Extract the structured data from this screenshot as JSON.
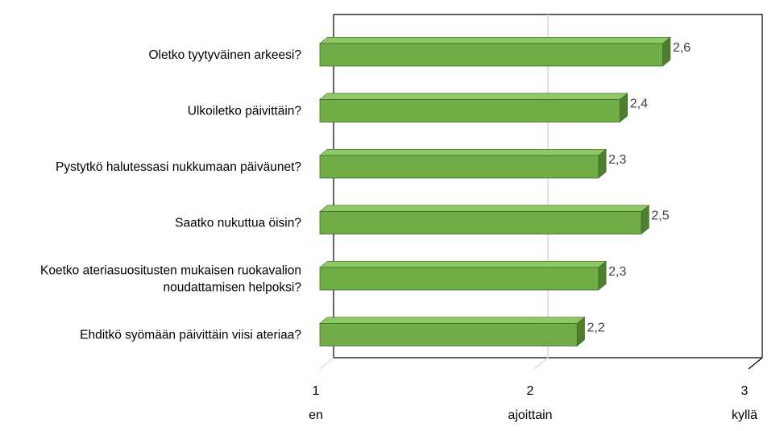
{
  "chart_data": {
    "type": "bar",
    "orientation": "horizontal",
    "style": "3d",
    "title": "",
    "xlabel": "",
    "ylabel": "",
    "categories": [
      "Oletko tyytyväinen arkeesi?",
      "Ulkoiletko päivittäin?",
      "Pystytkö halutessasi nukkumaan päiväunet?",
      "Saatko nukuttua öisin?",
      "Koetko ateriasuositusten mukaisen ruokavalion noudattamisen helpoksi?",
      "Ehditkö syömään päivittäin viisi ateriaa?"
    ],
    "category_lines": [
      [
        "Oletko tyytyväinen arkeesi?"
      ],
      [
        "Ulkoiletko päivittäin?"
      ],
      [
        "Pystytkö halutessasi nukkumaan päiväunet?"
      ],
      [
        "Saatko nukuttua öisin?"
      ],
      [
        "Koetko ateriasuositusten mukaisen ruokavalion",
        "noudattamisen helpoksi?"
      ],
      [
        "Ehditkö syömään päivittäin viisi ateriaa?"
      ]
    ],
    "values": [
      2.6,
      2.4,
      2.3,
      2.5,
      2.3,
      2.2
    ],
    "data_labels": [
      "2,6",
      "2,4",
      "2,3",
      "2,5",
      "2,3",
      "2,2"
    ],
    "xlim": [
      1,
      3
    ],
    "x_ticks": [
      {
        "value": 1,
        "label": "1",
        "sublabel": "en"
      },
      {
        "value": 2,
        "label": "2",
        "sublabel": "ajoittain"
      },
      {
        "value": 3,
        "label": "3",
        "sublabel": "kyllä"
      }
    ],
    "grid": true,
    "legend": "none",
    "colors": {
      "bar_front": "#70ad47",
      "bar_top": "#8fc965",
      "bar_side": "#4e7f2f",
      "bar_outline": "#3f6b25",
      "gridline": "#d9d9d9",
      "frame": "#000000",
      "text": "#000000",
      "data_label": "#404040"
    }
  }
}
